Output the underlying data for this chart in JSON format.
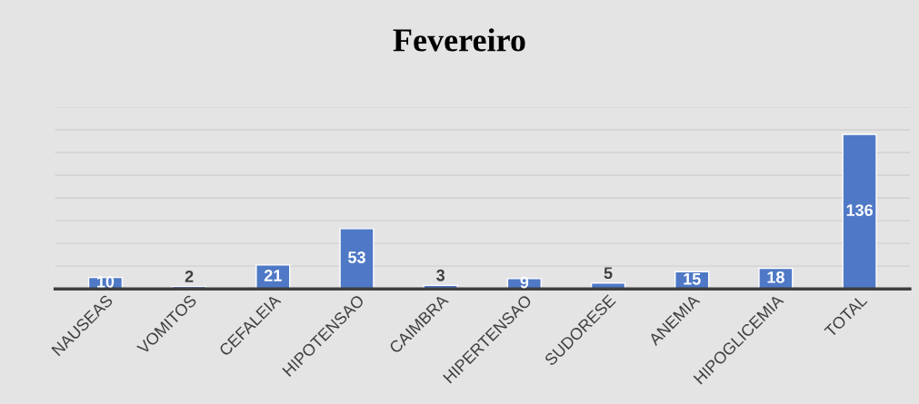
{
  "chart_data": {
    "type": "bar",
    "title": "Fevereiro",
    "categories": [
      "NAUSEAS",
      "VOMITOS",
      "CEFALEIA",
      "HIPOTENSAO",
      "CAIMBRA",
      "HIPERTENSAO",
      "SUDORESE",
      "ANEMIA",
      "HIPOGLICEMIA",
      "TOTAL"
    ],
    "values": [
      10,
      2,
      21,
      53,
      3,
      9,
      5,
      15,
      18,
      136
    ],
    "color": "#4f79c6",
    "ylim": [
      0,
      160
    ],
    "yticks": [
      {
        "value": 0,
        "label": null
      },
      {
        "value": 20,
        "label": null
      },
      {
        "value": 40,
        "label": null
      },
      {
        "value": 60,
        "label": null
      },
      {
        "value": 80,
        "label": null
      },
      {
        "value": 100,
        "label": null
      },
      {
        "value": 120,
        "label": null
      },
      {
        "value": 140,
        "label": null
      },
      {
        "value": 160,
        "label": null
      }
    ],
    "grid": "y",
    "tick_labels": "x",
    "data_labels": true
  }
}
